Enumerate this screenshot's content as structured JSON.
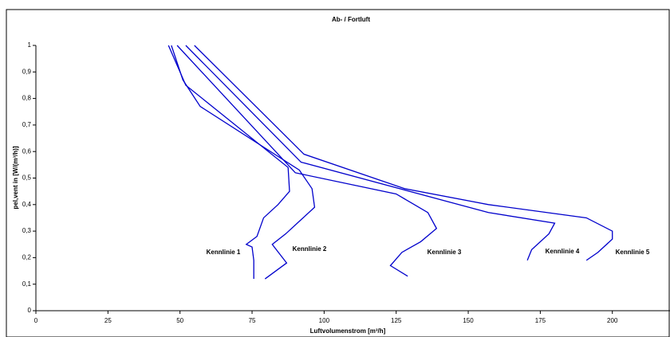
{
  "chart_data": {
    "type": "line",
    "title": "Ab- / Fortluft",
    "x_label": "Luftvolumenstrom [m³/h]",
    "y_label": "pel,vent in [W/(m³/h)]",
    "xlim": [
      0,
      220
    ],
    "xticks": [
      0,
      25,
      50,
      75,
      100,
      125,
      150,
      175,
      200
    ],
    "ylim": [
      0,
      1
    ],
    "yticks": [
      0,
      {
        "value": 0.1,
        "label": "0,1"
      },
      {
        "value": 0.2,
        "label": "0,2"
      },
      {
        "value": 0.3,
        "label": "0,3"
      },
      {
        "value": 0.4,
        "label": "0,4"
      },
      {
        "value": 0.5,
        "label": "0,5"
      },
      {
        "value": 0.6,
        "label": "0,6"
      },
      {
        "value": 0.7,
        "label": "0,7"
      },
      {
        "value": 0.8,
        "label": "0,8"
      },
      {
        "value": 0.9,
        "label": "0,9"
      },
      1
    ],
    "series": [
      {
        "name": "Kennlinie 1",
        "color": "#0000cc",
        "x": [
          46,
          50,
          52,
          87.5,
          88,
          84,
          79,
          76.7,
          73,
          75,
          75.6,
          75.6
        ],
        "values": [
          1,
          0.9,
          0.85,
          0.54,
          0.45,
          0.4,
          0.35,
          0.28,
          0.25,
          0.24,
          0.19,
          0.12
        ]
      },
      {
        "name": "Kennlinie 2",
        "color": "#0000cc",
        "x": [
          47,
          51,
          57,
          91.4,
          95.8,
          96.7,
          91.7,
          86.7,
          82,
          87,
          79.5
        ],
        "values": [
          1,
          0.87,
          0.77,
          0.53,
          0.46,
          0.39,
          0.34,
          0.29,
          0.25,
          0.18,
          0.12
        ]
      },
      {
        "name": "Kennlinie 3",
        "color": "#0000cc",
        "x": [
          49,
          90,
          125,
          136,
          139,
          133.5,
          127,
          123,
          129
        ],
        "values": [
          1,
          0.52,
          0.44,
          0.37,
          0.31,
          0.26,
          0.22,
          0.17,
          0.13
        ]
      },
      {
        "name": "Kennlinie 4",
        "color": "#0000cc",
        "x": [
          52,
          92,
          157,
          180,
          178,
          172,
          170.5
        ],
        "values": [
          1,
          0.56,
          0.37,
          0.33,
          0.29,
          0.23,
          0.19
        ]
      },
      {
        "name": "Kennlinie 5",
        "color": "#0000cc",
        "x": [
          55,
          93,
          128,
          157,
          191,
          200,
          200,
          195,
          191
        ],
        "values": [
          1,
          0.59,
          0.46,
          0.4,
          0.35,
          0.3,
          0.27,
          0.22,
          0.19
        ]
      }
    ]
  }
}
